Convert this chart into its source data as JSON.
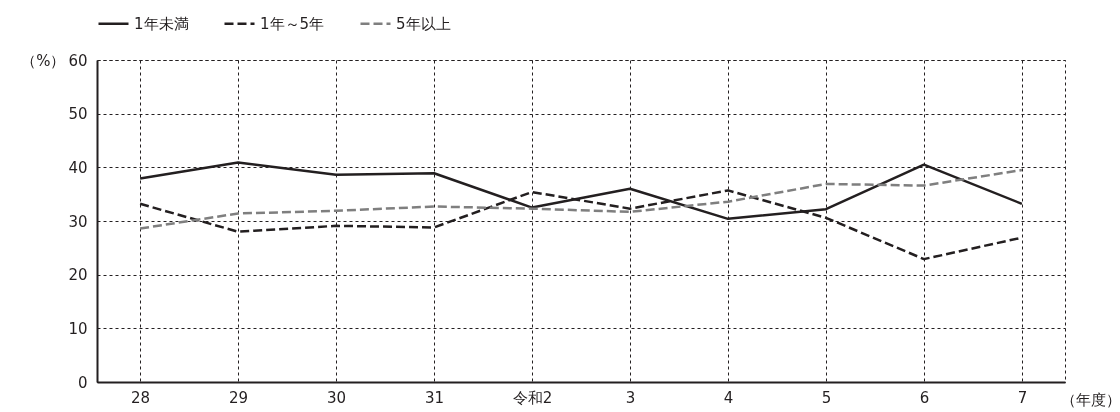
{
  "chart_data": {
    "type": "line",
    "ylabel": "（%）",
    "xlabel": "（年度）",
    "categories": [
      "28",
      "29",
      "30",
      "31",
      "令和2",
      "3",
      "4",
      "5",
      "6",
      "7"
    ],
    "series": [
      {
        "name": "1年未満",
        "color": "#231f20",
        "line_style": "solid",
        "values": [
          37.9,
          40.9,
          38.6,
          38.9,
          32.5,
          36.0,
          30.4,
          32.2,
          40.5,
          33.2
        ]
      },
      {
        "name": "1年～5年",
        "color": "#231f20",
        "line_style": "dashed",
        "values": [
          33.2,
          28.0,
          29.1,
          28.8,
          35.4,
          32.3,
          35.7,
          30.6,
          22.9,
          26.9
        ]
      },
      {
        "name": "5年以上",
        "color": "#7f7f7f",
        "line_style": "dashed",
        "values": [
          28.6,
          31.4,
          31.9,
          32.7,
          32.3,
          31.7,
          33.6,
          36.9,
          36.6,
          39.5
        ]
      }
    ],
    "ylim": [
      0,
      60
    ],
    "yticks": [
      0,
      10,
      20,
      30,
      40,
      50,
      60
    ],
    "grid": true,
    "legend": "top",
    "marker": "none"
  }
}
